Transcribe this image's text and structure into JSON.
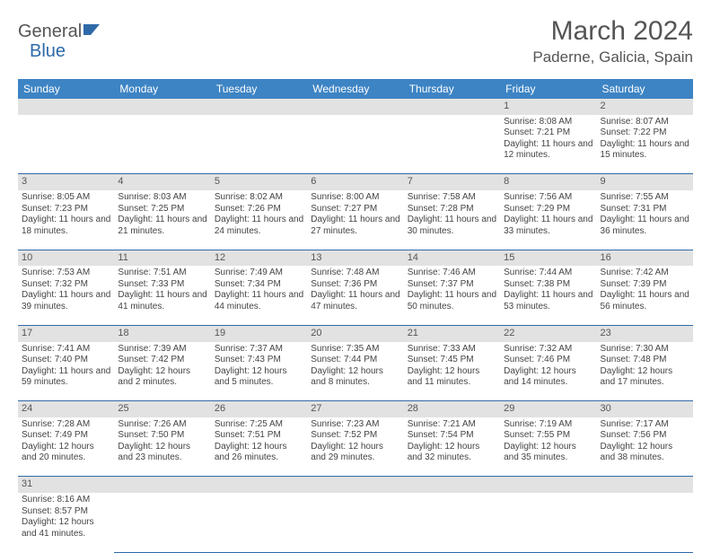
{
  "logo": {
    "part1": "General",
    "part2": "Blue"
  },
  "title": "March 2024",
  "location": "Paderne, Galicia, Spain",
  "colors": {
    "header_bg": "#3d84c4",
    "rule": "#2f6aa8",
    "daynum_bg": "#e2e2e2",
    "text": "#444444",
    "title_text": "#555555"
  },
  "weekdays": [
    "Sunday",
    "Monday",
    "Tuesday",
    "Wednesday",
    "Thursday",
    "Friday",
    "Saturday"
  ],
  "weeks": [
    [
      null,
      null,
      null,
      null,
      null,
      {
        "n": "1",
        "sr": "Sunrise: 8:08 AM",
        "ss": "Sunset: 7:21 PM",
        "dl": "Daylight: 11 hours and 12 minutes."
      },
      {
        "n": "2",
        "sr": "Sunrise: 8:07 AM",
        "ss": "Sunset: 7:22 PM",
        "dl": "Daylight: 11 hours and 15 minutes."
      }
    ],
    [
      {
        "n": "3",
        "sr": "Sunrise: 8:05 AM",
        "ss": "Sunset: 7:23 PM",
        "dl": "Daylight: 11 hours and 18 minutes."
      },
      {
        "n": "4",
        "sr": "Sunrise: 8:03 AM",
        "ss": "Sunset: 7:25 PM",
        "dl": "Daylight: 11 hours and 21 minutes."
      },
      {
        "n": "5",
        "sr": "Sunrise: 8:02 AM",
        "ss": "Sunset: 7:26 PM",
        "dl": "Daylight: 11 hours and 24 minutes."
      },
      {
        "n": "6",
        "sr": "Sunrise: 8:00 AM",
        "ss": "Sunset: 7:27 PM",
        "dl": "Daylight: 11 hours and 27 minutes."
      },
      {
        "n": "7",
        "sr": "Sunrise: 7:58 AM",
        "ss": "Sunset: 7:28 PM",
        "dl": "Daylight: 11 hours and 30 minutes."
      },
      {
        "n": "8",
        "sr": "Sunrise: 7:56 AM",
        "ss": "Sunset: 7:29 PM",
        "dl": "Daylight: 11 hours and 33 minutes."
      },
      {
        "n": "9",
        "sr": "Sunrise: 7:55 AM",
        "ss": "Sunset: 7:31 PM",
        "dl": "Daylight: 11 hours and 36 minutes."
      }
    ],
    [
      {
        "n": "10",
        "sr": "Sunrise: 7:53 AM",
        "ss": "Sunset: 7:32 PM",
        "dl": "Daylight: 11 hours and 39 minutes."
      },
      {
        "n": "11",
        "sr": "Sunrise: 7:51 AM",
        "ss": "Sunset: 7:33 PM",
        "dl": "Daylight: 11 hours and 41 minutes."
      },
      {
        "n": "12",
        "sr": "Sunrise: 7:49 AM",
        "ss": "Sunset: 7:34 PM",
        "dl": "Daylight: 11 hours and 44 minutes."
      },
      {
        "n": "13",
        "sr": "Sunrise: 7:48 AM",
        "ss": "Sunset: 7:36 PM",
        "dl": "Daylight: 11 hours and 47 minutes."
      },
      {
        "n": "14",
        "sr": "Sunrise: 7:46 AM",
        "ss": "Sunset: 7:37 PM",
        "dl": "Daylight: 11 hours and 50 minutes."
      },
      {
        "n": "15",
        "sr": "Sunrise: 7:44 AM",
        "ss": "Sunset: 7:38 PM",
        "dl": "Daylight: 11 hours and 53 minutes."
      },
      {
        "n": "16",
        "sr": "Sunrise: 7:42 AM",
        "ss": "Sunset: 7:39 PM",
        "dl": "Daylight: 11 hours and 56 minutes."
      }
    ],
    [
      {
        "n": "17",
        "sr": "Sunrise: 7:41 AM",
        "ss": "Sunset: 7:40 PM",
        "dl": "Daylight: 11 hours and 59 minutes."
      },
      {
        "n": "18",
        "sr": "Sunrise: 7:39 AM",
        "ss": "Sunset: 7:42 PM",
        "dl": "Daylight: 12 hours and 2 minutes."
      },
      {
        "n": "19",
        "sr": "Sunrise: 7:37 AM",
        "ss": "Sunset: 7:43 PM",
        "dl": "Daylight: 12 hours and 5 minutes."
      },
      {
        "n": "20",
        "sr": "Sunrise: 7:35 AM",
        "ss": "Sunset: 7:44 PM",
        "dl": "Daylight: 12 hours and 8 minutes."
      },
      {
        "n": "21",
        "sr": "Sunrise: 7:33 AM",
        "ss": "Sunset: 7:45 PM",
        "dl": "Daylight: 12 hours and 11 minutes."
      },
      {
        "n": "22",
        "sr": "Sunrise: 7:32 AM",
        "ss": "Sunset: 7:46 PM",
        "dl": "Daylight: 12 hours and 14 minutes."
      },
      {
        "n": "23",
        "sr": "Sunrise: 7:30 AM",
        "ss": "Sunset: 7:48 PM",
        "dl": "Daylight: 12 hours and 17 minutes."
      }
    ],
    [
      {
        "n": "24",
        "sr": "Sunrise: 7:28 AM",
        "ss": "Sunset: 7:49 PM",
        "dl": "Daylight: 12 hours and 20 minutes."
      },
      {
        "n": "25",
        "sr": "Sunrise: 7:26 AM",
        "ss": "Sunset: 7:50 PM",
        "dl": "Daylight: 12 hours and 23 minutes."
      },
      {
        "n": "26",
        "sr": "Sunrise: 7:25 AM",
        "ss": "Sunset: 7:51 PM",
        "dl": "Daylight: 12 hours and 26 minutes."
      },
      {
        "n": "27",
        "sr": "Sunrise: 7:23 AM",
        "ss": "Sunset: 7:52 PM",
        "dl": "Daylight: 12 hours and 29 minutes."
      },
      {
        "n": "28",
        "sr": "Sunrise: 7:21 AM",
        "ss": "Sunset: 7:54 PM",
        "dl": "Daylight: 12 hours and 32 minutes."
      },
      {
        "n": "29",
        "sr": "Sunrise: 7:19 AM",
        "ss": "Sunset: 7:55 PM",
        "dl": "Daylight: 12 hours and 35 minutes."
      },
      {
        "n": "30",
        "sr": "Sunrise: 7:17 AM",
        "ss": "Sunset: 7:56 PM",
        "dl": "Daylight: 12 hours and 38 minutes."
      }
    ],
    [
      {
        "n": "31",
        "sr": "Sunrise: 8:16 AM",
        "ss": "Sunset: 8:57 PM",
        "dl": "Daylight: 12 hours and 41 minutes."
      },
      null,
      null,
      null,
      null,
      null,
      null
    ]
  ]
}
